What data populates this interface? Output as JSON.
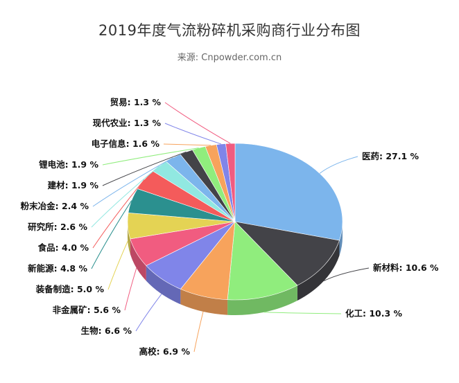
{
  "chart_data": {
    "type": "pie",
    "title": "2019年度气流粉碎机采购商行业分布图",
    "subtitle": "来源: Cnpowder.com.cn",
    "unit": "%",
    "slices": [
      {
        "label": "医药",
        "value": 27.1,
        "color": "#7cb5ec"
      },
      {
        "label": "新材料",
        "value": 10.6,
        "color": "#434348"
      },
      {
        "label": "化工",
        "value": 10.3,
        "color": "#90ed7d"
      },
      {
        "label": "高校",
        "value": 6.9,
        "color": "#f7a35c"
      },
      {
        "label": "生物",
        "value": 6.6,
        "color": "#8085e9"
      },
      {
        "label": "非金属矿",
        "value": 5.6,
        "color": "#f15c80"
      },
      {
        "label": "装备制造",
        "value": 5.0,
        "color": "#e4d354"
      },
      {
        "label": "新能源",
        "value": 4.8,
        "color": "#2b908f"
      },
      {
        "label": "食品",
        "value": 4.0,
        "color": "#f45b5b"
      },
      {
        "label": "研究所",
        "value": 2.6,
        "color": "#91e8e1"
      },
      {
        "label": "粉末冶金",
        "value": 2.4,
        "color": "#7cb5ec"
      },
      {
        "label": "建材",
        "value": 1.9,
        "color": "#434348"
      },
      {
        "label": "锂电池",
        "value": 1.9,
        "color": "#90ed7d"
      },
      {
        "label": "电子信息",
        "value": 1.6,
        "color": "#f7a35c"
      },
      {
        "label": "现代农业",
        "value": 1.3,
        "color": "#8085e9"
      },
      {
        "label": "贸易",
        "value": 1.3,
        "color": "#f15c80"
      }
    ]
  }
}
